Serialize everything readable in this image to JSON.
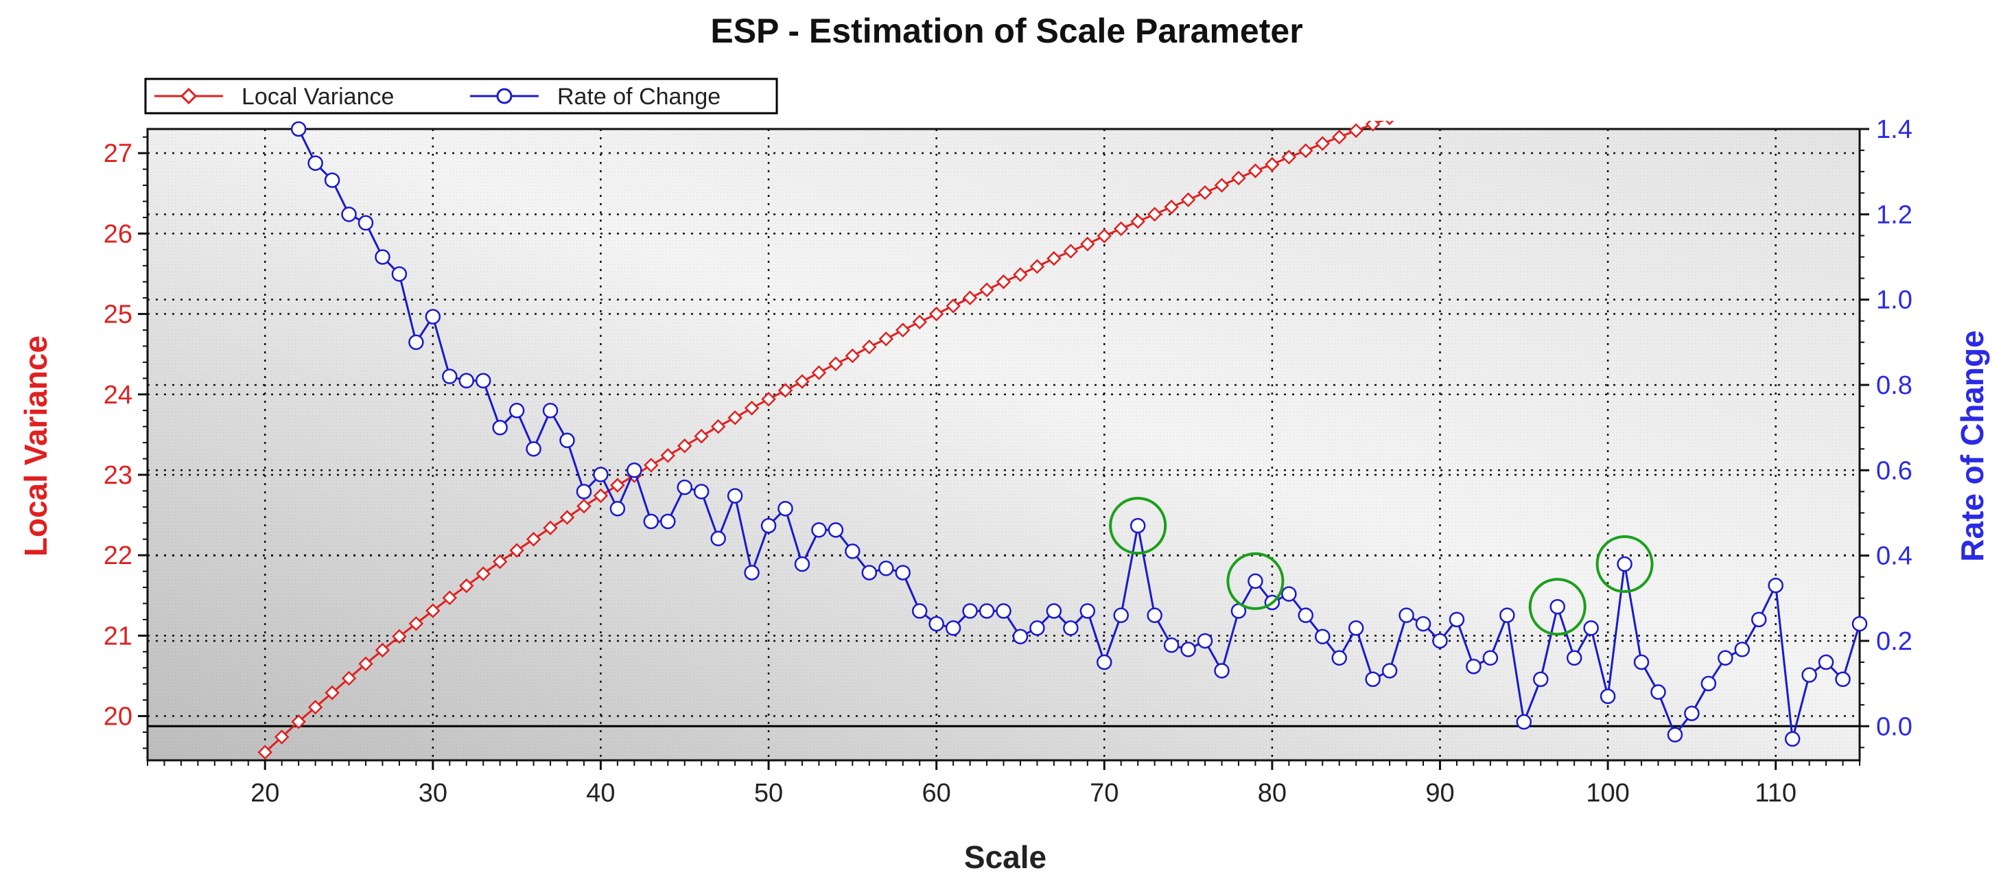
{
  "chart_data": {
    "type": "line",
    "title": "ESP - Estimation of Scale Parameter",
    "xlabel": "Scale",
    "ylabel_left": "Local Variance",
    "ylabel_right": "Rate of Change",
    "xlim": [
      13,
      115
    ],
    "ylim_left": [
      19.45,
      27.3
    ],
    "ylim_right": [
      -0.08,
      1.4
    ],
    "x_ticks": [
      20,
      30,
      40,
      50,
      60,
      70,
      80,
      90,
      100,
      110
    ],
    "y_left_ticks": [
      20,
      21,
      22,
      23,
      24,
      25,
      26,
      27
    ],
    "y_right_ticks": [
      0.0,
      0.2,
      0.4,
      0.6,
      0.8,
      1.0,
      1.2,
      1.4
    ],
    "x_tick_labels": [
      "20",
      "30",
      "40",
      "50",
      "60",
      "70",
      "80",
      "90",
      "100",
      "110"
    ],
    "y_left_tick_labels": [
      "20",
      "21",
      "22",
      "23",
      "24",
      "25",
      "26",
      "27"
    ],
    "y_right_tick_labels": [
      "0.0",
      "0.2",
      "0.4",
      "0.6",
      "0.8",
      "1.0",
      "1.2",
      "1.4"
    ],
    "grid": true,
    "legend_position": "top-left",
    "colors": {
      "local_variance": "#e02020",
      "rate_of_change": "#1a1acc",
      "highlight": "#1aa01a",
      "left_axis_text": "#e02020",
      "right_axis_text": "#2a2ae6",
      "zero_line": "#000000"
    },
    "series": [
      {
        "name": "Local Variance",
        "axis": "left",
        "marker": "diamond",
        "x": [
          20,
          21,
          22,
          23,
          24,
          25,
          26,
          27,
          28,
          29,
          30,
          31,
          32,
          33,
          34,
          35,
          36,
          37,
          38,
          39,
          40,
          41,
          42,
          43,
          44,
          45,
          46,
          47,
          48,
          49,
          50,
          51,
          52,
          53,
          54,
          55,
          56,
          57,
          58,
          59,
          60,
          61,
          62,
          63,
          64,
          65,
          66,
          67,
          68,
          69,
          70,
          71,
          72,
          73,
          74,
          75,
          76,
          77,
          78,
          79,
          80,
          81,
          82,
          83,
          84,
          85,
          86,
          87
        ],
        "values": [
          19.55,
          19.74,
          19.93,
          20.11,
          20.29,
          20.47,
          20.65,
          20.82,
          20.99,
          21.15,
          21.31,
          21.47,
          21.62,
          21.77,
          21.92,
          22.06,
          22.2,
          22.34,
          22.47,
          22.61,
          22.74,
          22.87,
          22.99,
          23.12,
          23.24,
          23.36,
          23.48,
          23.6,
          23.71,
          23.83,
          23.94,
          24.05,
          24.16,
          24.27,
          24.38,
          24.48,
          24.59,
          24.69,
          24.8,
          24.9,
          25.0,
          25.1,
          25.2,
          25.3,
          25.4,
          25.49,
          25.59,
          25.69,
          25.78,
          25.87,
          25.97,
          26.06,
          26.15,
          26.24,
          26.33,
          26.42,
          26.51,
          26.6,
          26.69,
          26.78,
          26.86,
          26.95,
          27.03,
          27.12,
          27.2,
          27.28,
          27.36,
          27.44
        ]
      },
      {
        "name": "Rate of Change",
        "axis": "right",
        "marker": "circle",
        "x": [
          22,
          23,
          24,
          25,
          26,
          27,
          28,
          29,
          30,
          31,
          32,
          33,
          34,
          35,
          36,
          37,
          38,
          39,
          40,
          41,
          42,
          43,
          44,
          45,
          46,
          47,
          48,
          49,
          50,
          51,
          52,
          53,
          54,
          55,
          56,
          57,
          58,
          59,
          60,
          61,
          62,
          63,
          64,
          65,
          66,
          67,
          68,
          69,
          70,
          71,
          72,
          73,
          74,
          75,
          76,
          77,
          78,
          79,
          80,
          81,
          82,
          83,
          84,
          85,
          86,
          87,
          88,
          89,
          90,
          91,
          92,
          93,
          94,
          95,
          96,
          97,
          98,
          99,
          100,
          101,
          102,
          103,
          104,
          105,
          106,
          107,
          108,
          109,
          110,
          111,
          112,
          113,
          114,
          115
        ],
        "values": [
          1.4,
          1.32,
          1.28,
          1.2,
          1.18,
          1.1,
          1.06,
          0.9,
          0.96,
          0.82,
          0.81,
          0.81,
          0.7,
          0.74,
          0.65,
          0.74,
          0.67,
          0.55,
          0.59,
          0.51,
          0.6,
          0.48,
          0.48,
          0.56,
          0.55,
          0.44,
          0.54,
          0.36,
          0.47,
          0.51,
          0.38,
          0.46,
          0.46,
          0.41,
          0.36,
          0.37,
          0.36,
          0.27,
          0.24,
          0.23,
          0.27,
          0.27,
          0.27,
          0.21,
          0.23,
          0.27,
          0.23,
          0.27,
          0.15,
          0.26,
          0.47,
          0.26,
          0.19,
          0.18,
          0.2,
          0.13,
          0.27,
          0.34,
          0.29,
          0.31,
          0.26,
          0.21,
          0.16,
          0.23,
          0.11,
          0.13,
          0.26,
          0.24,
          0.2,
          0.25,
          0.14,
          0.16,
          0.26,
          0.01,
          0.11,
          0.28,
          0.16,
          0.23,
          0.07,
          0.38,
          0.15,
          0.08,
          -0.02,
          0.03,
          0.1,
          0.16,
          0.18,
          0.25,
          0.33,
          -0.03,
          0.12,
          0.15,
          0.11,
          0.24
        ]
      }
    ],
    "highlighted_points": [
      {
        "x": 72,
        "value": 0.47,
        "series": "Rate of Change"
      },
      {
        "x": 79,
        "value": 0.34,
        "series": "Rate of Change"
      },
      {
        "x": 97,
        "value": 0.28,
        "series": "Rate of Change"
      },
      {
        "x": 101,
        "value": 0.38,
        "series": "Rate of Change"
      }
    ]
  }
}
